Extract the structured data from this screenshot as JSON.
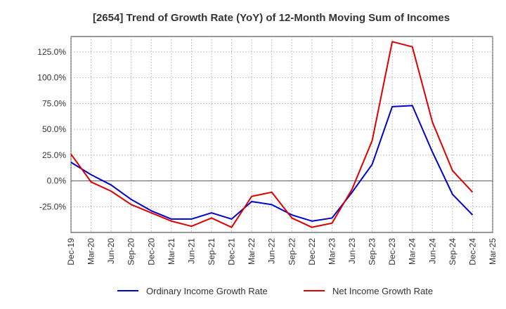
{
  "chart_data": {
    "type": "line",
    "title": "[2654]  Trend of Growth Rate (YoY) of 12-Month Moving Sum of Incomes",
    "xlabel": "",
    "ylabel": "",
    "x": [
      "Dec-19",
      "Mar-20",
      "Jun-20",
      "Sep-20",
      "Dec-20",
      "Mar-21",
      "Jun-21",
      "Sep-21",
      "Dec-21",
      "Mar-22",
      "Jun-22",
      "Sep-22",
      "Dec-22",
      "Mar-23",
      "Jun-23",
      "Sep-23",
      "Dec-23",
      "Mar-24",
      "Jun-24",
      "Sep-24",
      "Dec-24",
      "Mar-25"
    ],
    "ylim": [
      -50,
      140
    ],
    "yticks": [
      -25,
      0,
      25,
      50,
      75,
      100,
      125
    ],
    "ytick_labels": [
      "-25.0%",
      "0.0%",
      "25.0%",
      "50.0%",
      "75.0%",
      "100.0%",
      "125.0%"
    ],
    "grid": true,
    "legend_position": "bottom",
    "series": [
      {
        "name": "Ordinary Income Growth Rate",
        "color": "#0000cc",
        "values": [
          18,
          6,
          -4,
          -18,
          -29,
          -37,
          -37,
          -31,
          -37,
          -20,
          -23,
          -33,
          -39,
          -36,
          -11,
          16,
          72,
          73,
          28,
          -13,
          -33,
          null
        ]
      },
      {
        "name": "Net Income Growth Rate",
        "color": "#dd0000",
        "values": [
          26,
          -1,
          -10,
          -23,
          -31,
          -39,
          -44,
          -36,
          -45,
          -15,
          -11,
          -36,
          -45,
          -41,
          -8,
          39,
          135,
          130,
          57,
          10,
          -11,
          null
        ]
      }
    ]
  }
}
